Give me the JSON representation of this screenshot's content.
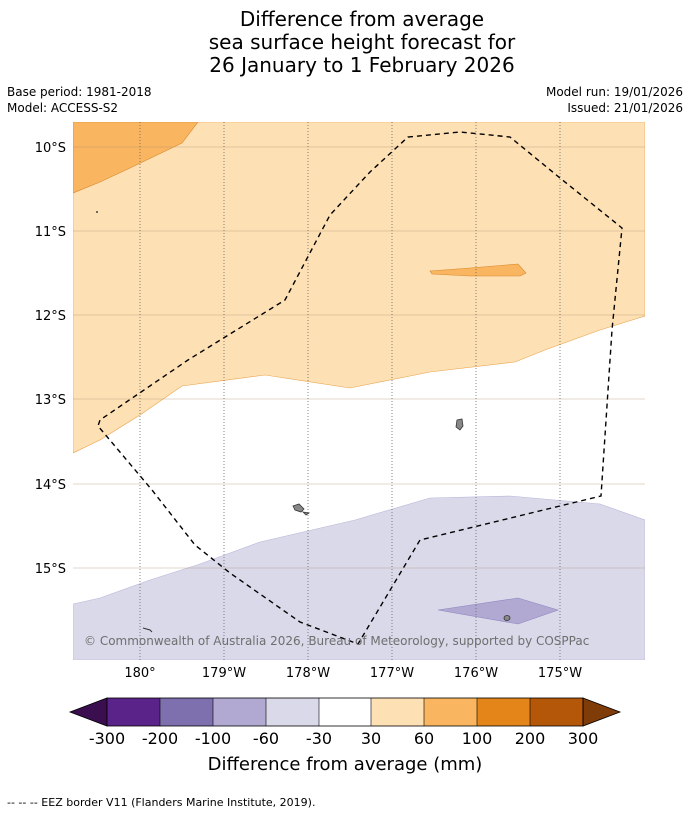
{
  "header": {
    "title_lines": [
      "Difference from average",
      "sea surface height forecast for",
      "26 January to 1 February 2026"
    ],
    "base_period": "Base period: 1981-2018",
    "model": "Model: ACCESS-S2",
    "model_run": "Model run: 19/01/2026",
    "issued": "Issued: 21/01/2026"
  },
  "map": {
    "lat_labels": [
      "10°S",
      "11°S",
      "12°S",
      "13°S",
      "14°S",
      "15°S"
    ],
    "lon_labels": [
      "180°",
      "179°W",
      "178°W",
      "177°W",
      "176°W",
      "175°W"
    ],
    "copyright": "© Commonwealth of Australia 2026, Bureau of Meteorology, supported by COSPPac",
    "colors": {
      "land": "#888888",
      "eez_border": "#000000"
    }
  },
  "colorbar": {
    "label": "Difference from average (mm)",
    "tick_labels": [
      "-300",
      "-200",
      "-100",
      "-60",
      "-30",
      "30",
      "60",
      "100",
      "200",
      "300"
    ],
    "segment_colors": [
      "#3b0f4f",
      "#5a2389",
      "#7e6faf",
      "#b1a9d2",
      "#d9d9ea",
      "#ffffff",
      "#fde0b4",
      "#f9b560",
      "#e38519",
      "#b45709",
      "#7f3b08"
    ]
  },
  "footnote": "--  --  -- EEZ border V11 (Flanders Marine Institute, 2019)."
}
